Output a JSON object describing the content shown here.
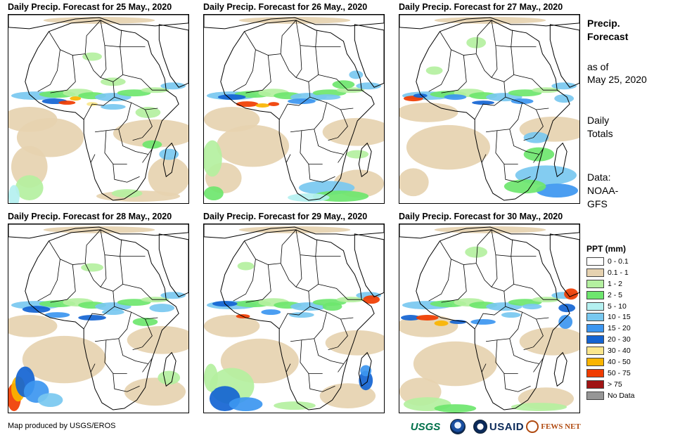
{
  "panels": [
    {
      "title": "Daily Precip. Forecast for 25 May., 2020"
    },
    {
      "title": "Daily Precip. Forecast for 26 May., 2020"
    },
    {
      "title": "Daily Precip. Forecast for 27 May., 2020"
    },
    {
      "title": "Daily Precip. Forecast for 28 May., 2020"
    },
    {
      "title": "Daily Precip. Forecast for 29 May., 2020"
    },
    {
      "title": "Daily Precip. Forecast for 30 May., 2020"
    }
  ],
  "side": {
    "title_line1": "Precip.",
    "title_line2": "Forecast",
    "asof_line1": "as of",
    "asof_line2": "May 25, 2020",
    "totals_line1": "Daily",
    "totals_line2": "Totals",
    "data_line1": "Data:",
    "data_line2": "NOAA-",
    "data_line3": "GFS"
  },
  "legend": {
    "title": "PPT (mm)",
    "items": [
      {
        "label": "0 - 0.1",
        "color": "#ffffff"
      },
      {
        "label": "0.1 - 1",
        "color": "#e6d2b0"
      },
      {
        "label": "1 - 2",
        "color": "#b4f0a0"
      },
      {
        "label": "2 - 5",
        "color": "#6ee66e"
      },
      {
        "label": "5 - 10",
        "color": "#b4f0f0"
      },
      {
        "label": "10 - 15",
        "color": "#78c8f0"
      },
      {
        "label": "15 - 20",
        "color": "#3c96f0"
      },
      {
        "label": "20 - 30",
        "color": "#1464d2"
      },
      {
        "label": "30 - 40",
        "color": "#fae68c"
      },
      {
        "label": "40 - 50",
        "color": "#fab400"
      },
      {
        "label": "50 - 75",
        "color": "#f03c00"
      },
      {
        "label": "> 75",
        "color": "#a01414"
      },
      {
        "label": "No Data",
        "color": "#969696"
      }
    ]
  },
  "footer": {
    "credit": "Map produced by USGS/EROS",
    "logo_usgs": "USGS",
    "logo_usaid": "USAID",
    "logo_fews": "FEWS NET"
  },
  "map_style": {
    "ocean": "#ffffff",
    "coast": "#000000"
  }
}
